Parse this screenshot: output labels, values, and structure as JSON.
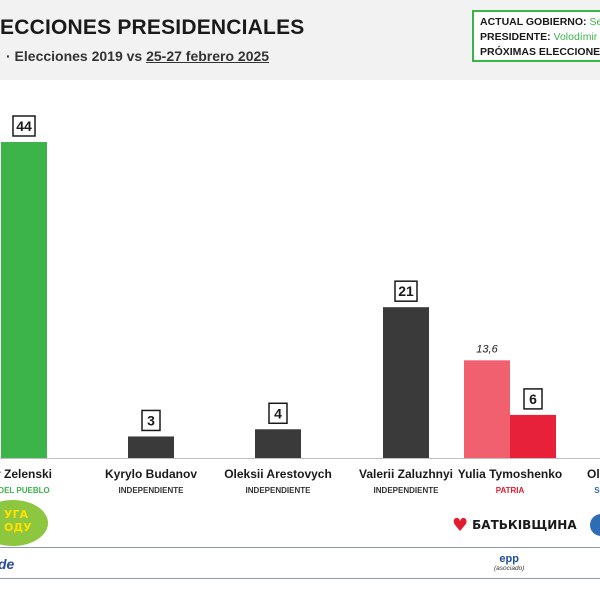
{
  "header": {
    "title": "ECCIONES PRESIDENCIALES",
    "subtitle_prefix": "· Elecciones 2019 vs ",
    "subtitle_dates": "25-27 febrero 2025",
    "info_box": {
      "gov_label": "ACTUAL GOBIERNO:",
      "gov_value": "Ser",
      "president_label": "PRESIDENTE:",
      "president_value": "Volodímir Z",
      "next_label": "PRÓXIMAS ELECCIONES"
    }
  },
  "chart_data": {
    "type": "bar",
    "categories": [
      "r Zelenski",
      "Kyrylo Budanov",
      "Oleksii Arestovych",
      "Valerii Zaluzhnyi",
      "Yulia Tymoshenko",
      "Olek"
    ],
    "parties": [
      "DEL PUEBLO",
      "INDEPENDIENTE",
      "INDEPENDIENTE",
      "INDEPENDIENTE",
      "PATRIA",
      "SO"
    ],
    "party_colors": [
      "#3cb44a",
      "#333333",
      "#333333",
      "#333333",
      "#e21c2e",
      "#2e6db4"
    ],
    "series": [
      {
        "values": [
          null,
          null,
          null,
          null,
          13.6,
          null
        ],
        "color": "#f0606e"
      },
      {
        "values": [
          44,
          3,
          4,
          21,
          6,
          null
        ],
        "colors": [
          "#3cb44a",
          "#3a3a3a",
          "#3a3a3a",
          "#3a3a3a",
          "#e8213a",
          "#3a3a3a"
        ]
      }
    ],
    "data_labels_2019": [
      "",
      "",
      "",
      "",
      "13,6",
      ""
    ],
    "data_labels_2025": [
      "44",
      "3",
      "4",
      "21",
      "6",
      ""
    ],
    "ylim": [
      0,
      48
    ],
    "grid": false,
    "legend": "none"
  },
  "logos": {
    "sn_text": "УГА\nОДУ",
    "batk_text": "БАТЬКІВЩИНА",
    "re_text": "de",
    "epp_text": "epp",
    "epp_note": "(asociado)"
  }
}
